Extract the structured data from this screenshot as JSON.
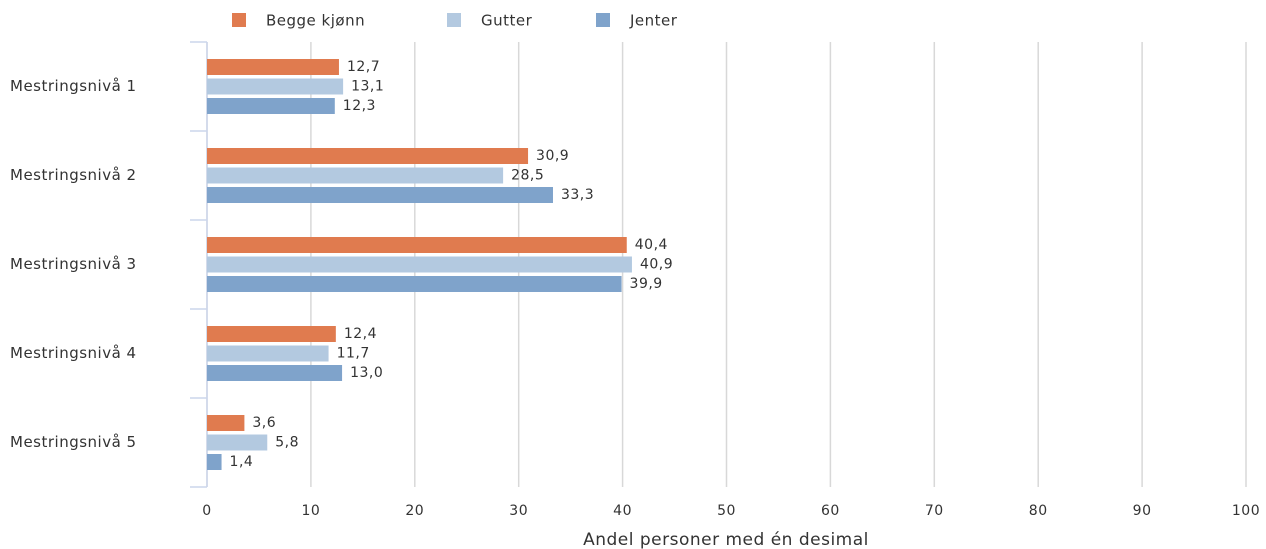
{
  "chart_data": {
    "type": "bar",
    "orientation": "horizontal",
    "xlabel": "Andel personer med én desimal",
    "categories": [
      "Mestringsnivå 1",
      "Mestringsnivå 2",
      "Mestringsnivå 3",
      "Mestringsnivå 4",
      "Mestringsnivå 5"
    ],
    "series": [
      {
        "name": "Begge kjønn",
        "color": "#e07b4f",
        "values": [
          12.7,
          30.9,
          40.4,
          12.4,
          3.6
        ],
        "value_labels": [
          "12,7",
          "30,9",
          "40,4",
          "12,4",
          "3,6"
        ]
      },
      {
        "name": "Gutter",
        "color": "#b3c9e0",
        "values": [
          13.1,
          28.5,
          40.9,
          11.7,
          5.8
        ],
        "value_labels": [
          "13,1",
          "28,5",
          "40,9",
          "11,7",
          "5,8"
        ]
      },
      {
        "name": "Jenter",
        "color": "#7fa3cb",
        "values": [
          12.3,
          33.3,
          39.9,
          13.0,
          1.4
        ],
        "value_labels": [
          "12,3",
          "33,3",
          "39,9",
          "13,0",
          "1,4"
        ]
      }
    ],
    "xlim": [
      0,
      100
    ],
    "xticks": [
      0,
      10,
      20,
      30,
      40,
      50,
      60,
      70,
      80,
      90,
      100
    ],
    "grid": true,
    "legend": "top"
  }
}
